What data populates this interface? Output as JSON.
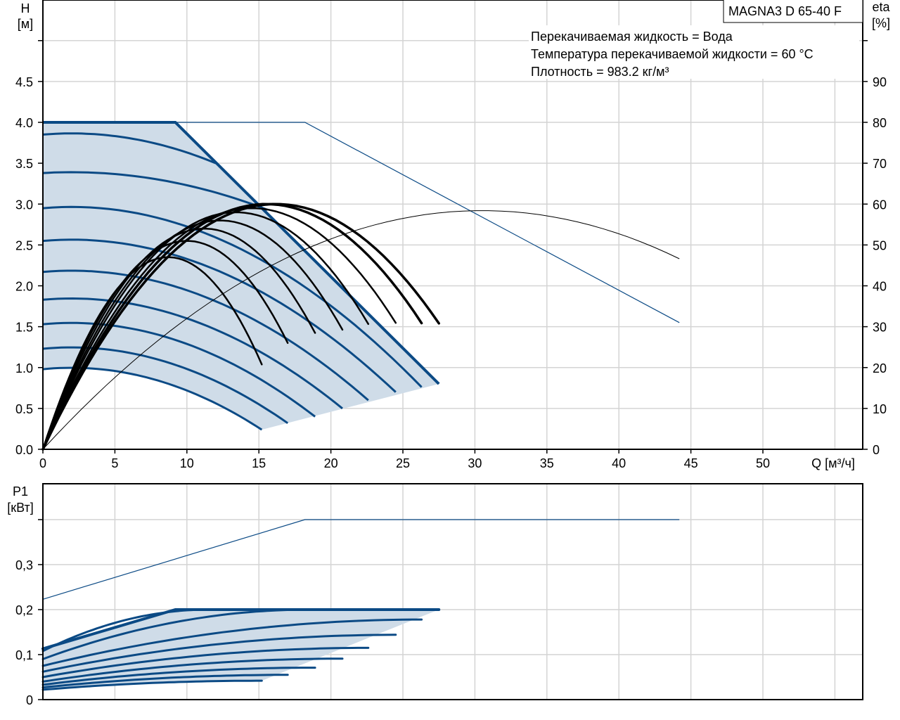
{
  "chart_data": [
    {
      "type": "line",
      "title": "MAGNA3 D 65-40 F",
      "annotations": [
        "Перекачиваемая жидкость = Вода",
        "Температура перекачиваемой жидкости = 60 °C",
        "Плотность = 983.2 кг/м³"
      ],
      "xlabel": "Q [м³/ч]",
      "ylabel": [
        "H",
        "[м]"
      ],
      "y2label": [
        "eta",
        "[%]"
      ],
      "xlim": [
        0,
        57
      ],
      "ylim": [
        0,
        5.5
      ],
      "y2lim": [
        0,
        110
      ],
      "xticks": [
        "0",
        "5",
        "10",
        "15",
        "20",
        "25",
        "30",
        "35",
        "40",
        "45",
        "50"
      ],
      "yticks": [
        "0.0",
        "0.5",
        "1.0",
        "1.5",
        "2.0",
        "2.5",
        "3.0",
        "3.5",
        "4.0",
        "4.5"
      ],
      "y2ticks": [
        "0",
        "10",
        "20",
        "30",
        "40",
        "50",
        "60",
        "70",
        "80",
        "90"
      ],
      "grid": true,
      "colors": {
        "curve": "#0b4a85",
        "fill": "#cfdce8",
        "eta": "#000000",
        "grid": "#d4d4d4"
      },
      "max_curve": [
        [
          0,
          4.0
        ],
        [
          9.2,
          4.0
        ],
        [
          27.5,
          0.8
        ]
      ],
      "reference_curve": [
        [
          0,
          4.0
        ],
        [
          18.2,
          4.0
        ],
        [
          44.2,
          1.55
        ]
      ],
      "head_curves": [
        {
          "h0": 3.85,
          "q_end": 12.0,
          "h_end": 3.5
        },
        {
          "h0": 3.38,
          "q_end": 15.6,
          "h_end": 2.93
        },
        {
          "h0": 2.95,
          "q_end": 26.3,
          "h_end": 0.76
        },
        {
          "h0": 2.55,
          "q_end": 24.5,
          "h_end": 0.7
        },
        {
          "h0": 2.17,
          "q_end": 22.6,
          "h_end": 0.6
        },
        {
          "h0": 1.83,
          "q_end": 20.8,
          "h_end": 0.5
        },
        {
          "h0": 1.53,
          "q_end": 18.9,
          "h_end": 0.4
        },
        {
          "h0": 1.23,
          "q_end": 17.0,
          "h_end": 0.32
        },
        {
          "h0": 0.98,
          "q_end": 15.2,
          "h_end": 0.24
        }
      ],
      "eta_curves": [
        {
          "q_peak": 8.7,
          "eta_peak": 47,
          "q_end": 15.2
        },
        {
          "q_peak": 10.0,
          "eta_peak": 51,
          "q_end": 17.0
        },
        {
          "q_peak": 11.2,
          "eta_peak": 54,
          "q_end": 18.9
        },
        {
          "q_peak": 12.3,
          "eta_peak": 56,
          "q_end": 20.8
        },
        {
          "q_peak": 13.4,
          "eta_peak": 58,
          "q_end": 22.6
        },
        {
          "q_peak": 14.5,
          "eta_peak": 59,
          "q_end": 24.5
        },
        {
          "q_peak": 15.5,
          "eta_peak": 60,
          "q_end": 26.3
        },
        {
          "q_peak": 16.2,
          "eta_peak": 60,
          "q_end": 27.5
        }
      ],
      "reference_eta": {
        "q_peak": 30.5,
        "eta_peak": 58.4,
        "q_end": 44.2
      }
    },
    {
      "type": "line",
      "ylabel": [
        "P1",
        "[кВт]"
      ],
      "xlim": [
        0,
        57
      ],
      "ylim": [
        0,
        0.48
      ],
      "yticks": [
        "0",
        "0,1",
        "0,2",
        "0,3"
      ],
      "grid": true,
      "max_curve": [
        [
          0,
          0.113
        ],
        [
          9.2,
          0.2
        ],
        [
          27.5,
          0.2
        ]
      ],
      "reference_curve": [
        [
          0,
          0.223
        ],
        [
          18.2,
          0.4
        ],
        [
          44.2,
          0.4
        ]
      ],
      "power_curves": [
        {
          "p0": 0.108,
          "q_end": 11.5,
          "p_end": 0.2
        },
        {
          "p0": 0.09,
          "q_end": 18.5,
          "p_end": 0.2
        },
        {
          "p0": 0.075,
          "q_end": 26.3,
          "p_end": 0.178
        },
        {
          "p0": 0.062,
          "q_end": 24.5,
          "p_end": 0.144
        },
        {
          "p0": 0.05,
          "q_end": 22.6,
          "p_end": 0.115
        },
        {
          "p0": 0.04,
          "q_end": 20.8,
          "p_end": 0.091
        },
        {
          "p0": 0.033,
          "q_end": 18.9,
          "p_end": 0.071
        },
        {
          "p0": 0.027,
          "q_end": 17.0,
          "p_end": 0.055
        },
        {
          "p0": 0.022,
          "q_end": 15.2,
          "p_end": 0.042
        }
      ]
    }
  ]
}
